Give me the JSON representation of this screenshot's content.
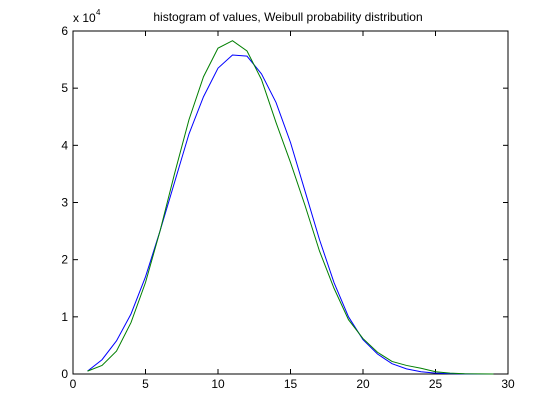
{
  "chart_data": {
    "type": "line",
    "title": "histogram of values, Weibull probability distribution",
    "xlabel": "",
    "ylabel": "",
    "xlim": [
      0,
      30
    ],
    "ylim": [
      0,
      60000
    ],
    "y_exponent_label": "x 10",
    "y_exponent_power": "4",
    "grid": false,
    "x_ticks": [
      0,
      5,
      10,
      15,
      20,
      25,
      30
    ],
    "y_ticks": [
      0,
      1,
      2,
      3,
      4,
      5,
      6
    ],
    "x": [
      1,
      2,
      3,
      4,
      5,
      6,
      7,
      8,
      9,
      10,
      11,
      12,
      13,
      14,
      15,
      16,
      17,
      18,
      19,
      20,
      21,
      22,
      23,
      24,
      25,
      26,
      27,
      28,
      29
    ],
    "series": [
      {
        "color": "#0000ff",
        "values": [
          500,
          2500,
          5800,
          10500,
          17000,
          25000,
          33500,
          42000,
          48500,
          53500,
          55800,
          55600,
          52500,
          47500,
          40500,
          32000,
          23500,
          16000,
          10000,
          6000,
          3500,
          1800,
          900,
          400,
          150,
          60,
          20,
          10,
          0
        ]
      },
      {
        "color": "#007f00",
        "values": [
          500,
          1500,
          4000,
          9000,
          16000,
          25000,
          35000,
          44500,
          52000,
          57000,
          58300,
          56500,
          51500,
          44000,
          37000,
          29500,
          21500,
          15000,
          9500,
          6200,
          3800,
          2200,
          1500,
          1000,
          400,
          150,
          50,
          20,
          0
        ]
      }
    ]
  }
}
